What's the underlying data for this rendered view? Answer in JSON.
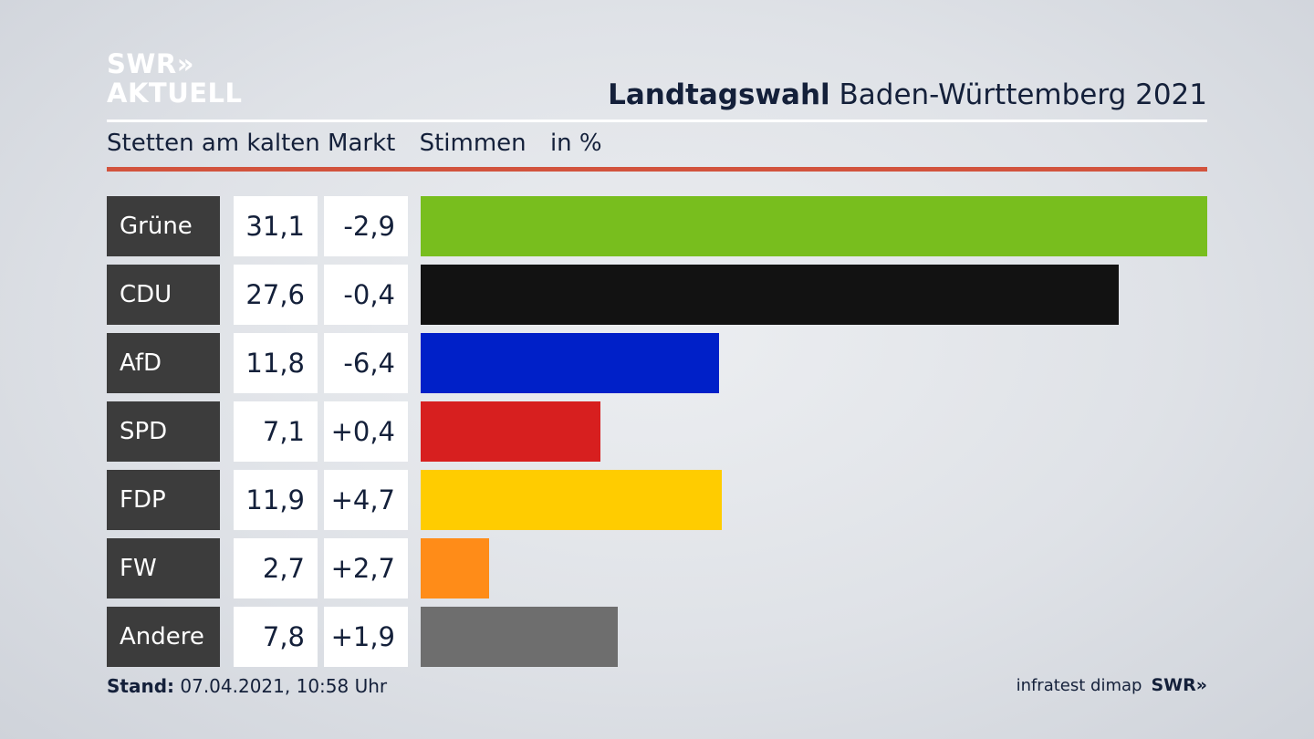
{
  "logo": {
    "line1": "SWR»",
    "line2": "AKTUELL"
  },
  "header": {
    "title_bold": "Landtagswahl",
    "title_rest": " Baden-Württemberg 2021",
    "location": "Stetten am kalten Markt",
    "measure": "Stimmen",
    "unit": "in %"
  },
  "colors": {
    "accent_rule": "#d2533d",
    "label_bg": "#3c3c3c"
  },
  "chart_data": {
    "type": "bar",
    "categories": [
      "Grüne",
      "CDU",
      "AfD",
      "SPD",
      "FDP",
      "FW",
      "Andere"
    ],
    "values": [
      31.1,
      27.6,
      11.8,
      7.1,
      11.9,
      2.7,
      7.8
    ],
    "value_labels": [
      "31,1",
      "27,6",
      "11,8",
      "7,1",
      "11,9",
      "2,7",
      "7,8"
    ],
    "change_labels": [
      "-2,9",
      "-0,4",
      "-6,4",
      "+0,4",
      "+4,7",
      "+2,7",
      "+1,9"
    ],
    "colors": [
      "#78be1e",
      "#121212",
      "#0020c8",
      "#d71f1f",
      "#ffcc00",
      "#ff8c18",
      "#6e6e6e"
    ],
    "xlim": [
      0,
      31.1
    ],
    "grid": false
  },
  "footer": {
    "stand_label": "Stand:",
    "stand_value": " 07.04.2021, 10:58 Uhr",
    "source": "infratest dimap",
    "brand": "SWR»"
  }
}
